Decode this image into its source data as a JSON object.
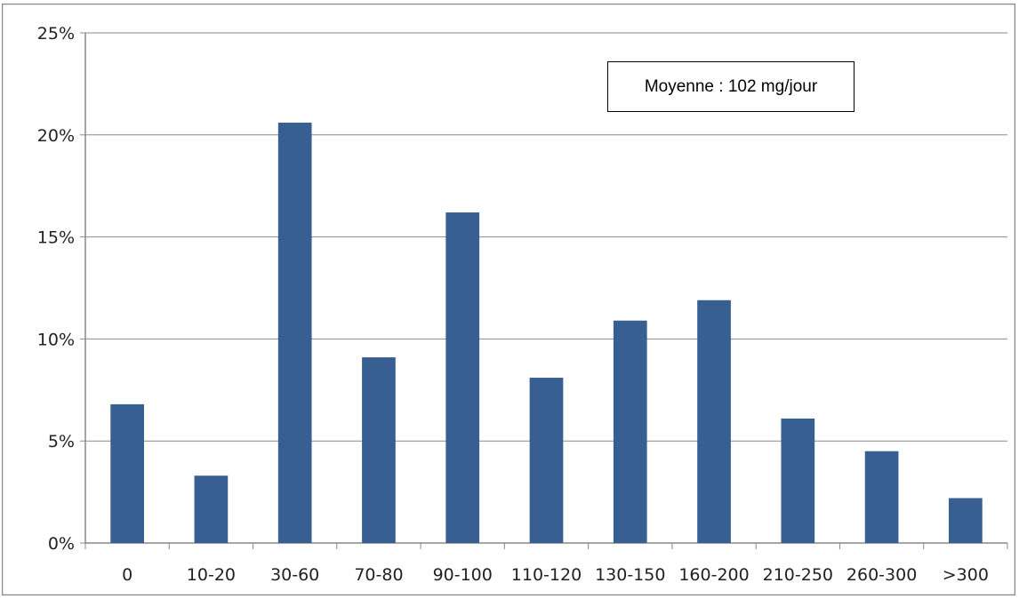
{
  "chart_data": {
    "type": "bar",
    "categories": [
      "0",
      "10-20",
      "30-60",
      "70-80",
      "90-100",
      "110-120",
      "130-150",
      "160-200",
      "210-250",
      "260-300",
      ">300"
    ],
    "values": [
      6.8,
      3.3,
      20.6,
      9.1,
      16.2,
      8.1,
      10.9,
      11.9,
      6.1,
      4.5,
      2.2
    ],
    "ylim": [
      0,
      25
    ],
    "yticks": [
      0,
      5,
      10,
      15,
      20,
      25
    ],
    "ytick_labels": [
      "0%",
      "5%",
      "10%",
      "15%",
      "20%",
      "25%"
    ],
    "grid": true,
    "colors": {
      "bar": "#375F91",
      "grid": "#888888",
      "axis": "#888888",
      "frame": "#888888"
    },
    "annotation": "Moyenne : 102 mg/jour"
  }
}
